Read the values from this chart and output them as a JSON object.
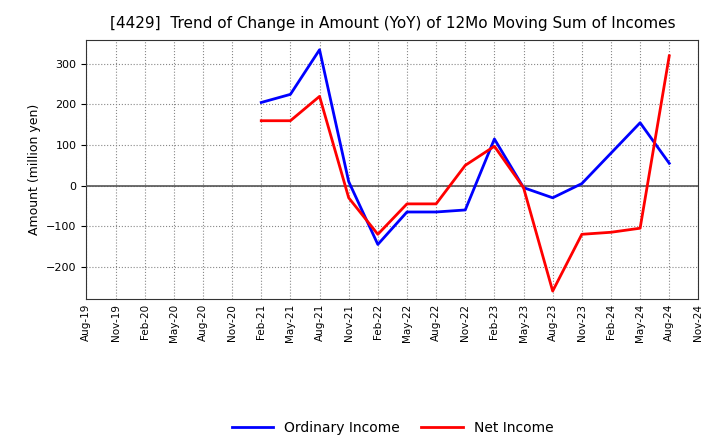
{
  "title": "[4429]  Trend of Change in Amount (YoY) of 12Mo Moving Sum of Incomes",
  "ylabel": "Amount (million yen)",
  "x_labels": [
    "Aug-19",
    "Nov-19",
    "Feb-20",
    "May-20",
    "Aug-20",
    "Nov-20",
    "Feb-21",
    "May-21",
    "Aug-21",
    "Nov-21",
    "Feb-22",
    "May-22",
    "Aug-22",
    "Nov-22",
    "Feb-23",
    "May-23",
    "Aug-23",
    "Nov-23",
    "Feb-24",
    "May-24",
    "Aug-24",
    "Nov-24"
  ],
  "ordinary_income": [
    null,
    null,
    null,
    null,
    null,
    null,
    205,
    225,
    335,
    10,
    -145,
    -65,
    -65,
    -60,
    115,
    -5,
    -30,
    5,
    80,
    155,
    55,
    null
  ],
  "net_income": [
    null,
    null,
    null,
    null,
    null,
    null,
    160,
    160,
    220,
    -30,
    -120,
    -45,
    -45,
    50,
    97,
    -5,
    -260,
    -120,
    -115,
    -105,
    320,
    null
  ],
  "ordinary_income_color": "#0000ff",
  "net_income_color": "#ff0000",
  "ylim": [
    -280,
    360
  ],
  "yticks": [
    -200,
    -100,
    0,
    100,
    200,
    300
  ],
  "background_color": "#ffffff",
  "grid_color": "#888888",
  "legend_labels": [
    "Ordinary Income",
    "Net Income"
  ]
}
